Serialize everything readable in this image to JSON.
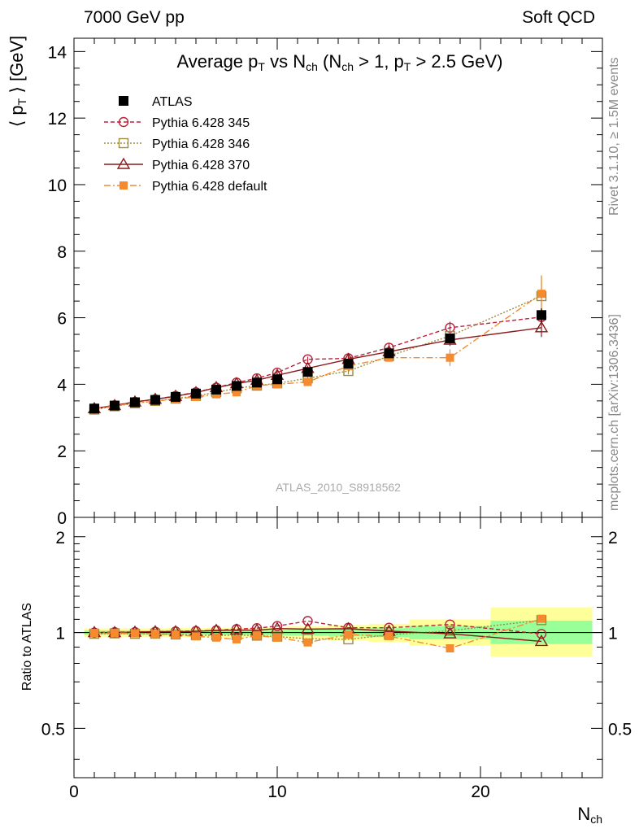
{
  "header": {
    "left": "7000 GeV pp",
    "right": "Soft QCD"
  },
  "side": {
    "rivet": "Rivet 3.1.10, ≥ 1.5M events",
    "mcplots": "mcplots.cern.ch [arXiv:1306.3436]"
  },
  "analysis_id": "ATLAS_2010_S8918562",
  "colors": {
    "atlas": "#000000",
    "p345": "#b8233a",
    "p346": "#a08a3c",
    "p370": "#8b1a1a",
    "pdef": "#f58a2e",
    "band_yellow": "#ffff99",
    "band_green": "#99ff99"
  },
  "chart_data": [
    {
      "type": "line",
      "title_parts": [
        "Average p",
        "T",
        " vs N",
        "ch",
        " (N",
        "ch",
        " > 1, p",
        "T",
        " > 2.5 GeV)"
      ],
      "ylabel_parts": [
        "⟨ p",
        "T",
        " ⟩  [GeV]"
      ],
      "xlim": [
        0,
        26
      ],
      "ylim": [
        0,
        14.4
      ],
      "yticks": [
        0,
        2,
        4,
        6,
        8,
        10,
        12,
        14
      ],
      "x": [
        1,
        2,
        3,
        4,
        5,
        6,
        7,
        8,
        9,
        10,
        11.5,
        13.5,
        15.5,
        18.5,
        23
      ],
      "series": [
        {
          "name": "ATLAS",
          "key": "atlas",
          "values": [
            3.27,
            3.36,
            3.46,
            3.53,
            3.62,
            3.72,
            3.84,
            3.95,
            4.05,
            4.15,
            4.37,
            4.62,
            4.93,
            5.38,
            6.08
          ],
          "errors": [
            0.03,
            0.03,
            0.03,
            0.03,
            0.04,
            0.04,
            0.05,
            0.05,
            0.06,
            0.07,
            0.08,
            0.1,
            0.12,
            0.15,
            0.2
          ]
        },
        {
          "name": "Pythia 6.428 345",
          "key": "p345",
          "values": [
            3.27,
            3.37,
            3.47,
            3.55,
            3.65,
            3.76,
            3.9,
            4.05,
            4.18,
            4.35,
            4.75,
            4.78,
            5.1,
            5.7,
            6.02
          ],
          "errors": [
            0.02,
            0.02,
            0.02,
            0.03,
            0.03,
            0.03,
            0.04,
            0.04,
            0.05,
            0.06,
            0.08,
            0.1,
            0.12,
            0.18,
            0.25
          ]
        },
        {
          "name": "Pythia 6.428 346",
          "key": "p346",
          "values": [
            3.24,
            3.34,
            3.43,
            3.5,
            3.57,
            3.65,
            3.76,
            3.88,
            3.96,
            4.03,
            4.18,
            4.4,
            4.85,
            5.45,
            6.65
          ],
          "errors": [
            0.02,
            0.02,
            0.02,
            0.03,
            0.03,
            0.03,
            0.04,
            0.04,
            0.05,
            0.06,
            0.08,
            0.1,
            0.12,
            0.18,
            0.6
          ]
        },
        {
          "name": "Pythia 6.428 370",
          "key": "p370",
          "values": [
            3.27,
            3.36,
            3.47,
            3.55,
            3.64,
            3.75,
            3.9,
            4.02,
            4.12,
            4.27,
            4.48,
            4.75,
            4.98,
            5.33,
            5.7
          ],
          "errors": [
            0.02,
            0.02,
            0.02,
            0.03,
            0.03,
            0.03,
            0.04,
            0.04,
            0.05,
            0.06,
            0.08,
            0.1,
            0.12,
            0.18,
            0.28
          ]
        },
        {
          "name": "Pythia 6.428 default",
          "key": "pdef",
          "values": [
            3.26,
            3.35,
            3.44,
            3.49,
            3.56,
            3.62,
            3.7,
            3.76,
            3.96,
            4.0,
            4.07,
            4.55,
            4.8,
            4.8,
            6.72
          ],
          "errors": [
            0.02,
            0.02,
            0.02,
            0.03,
            0.03,
            0.03,
            0.04,
            0.04,
            0.05,
            0.06,
            0.08,
            0.1,
            0.12,
            0.25,
            0.55
          ]
        }
      ],
      "legend_placement": "top-left"
    },
    {
      "type": "line",
      "ylabel": "Ratio to ATLAS",
      "xlabel_parts": [
        "N",
        "ch"
      ],
      "xlim": [
        0,
        26
      ],
      "ylim": [
        0.35,
        2.3
      ],
      "y_scale": "log",
      "yticks": [
        0.5,
        1,
        2
      ],
      "yticklabels": [
        "0.5",
        "1",
        "2"
      ],
      "xticks": [
        0,
        10,
        20
      ],
      "bands": [
        {
          "x": [
            0.5,
            1.5
          ],
          "yellow": [
            0.97,
            1.03
          ],
          "green": [
            0.985,
            1.015
          ]
        },
        {
          "x": [
            1.5,
            2.5
          ],
          "yellow": [
            0.97,
            1.03
          ],
          "green": [
            0.985,
            1.015
          ]
        },
        {
          "x": [
            2.5,
            3.5
          ],
          "yellow": [
            0.97,
            1.03
          ],
          "green": [
            0.985,
            1.015
          ]
        },
        {
          "x": [
            3.5,
            4.5
          ],
          "yellow": [
            0.97,
            1.03
          ],
          "green": [
            0.985,
            1.015
          ]
        },
        {
          "x": [
            4.5,
            5.5
          ],
          "yellow": [
            0.968,
            1.032
          ],
          "green": [
            0.984,
            1.016
          ]
        },
        {
          "x": [
            5.5,
            6.5
          ],
          "yellow": [
            0.968,
            1.032
          ],
          "green": [
            0.984,
            1.016
          ]
        },
        {
          "x": [
            6.5,
            7.5
          ],
          "yellow": [
            0.966,
            1.034
          ],
          "green": [
            0.983,
            1.017
          ]
        },
        {
          "x": [
            7.5,
            8.5
          ],
          "yellow": [
            0.966,
            1.034
          ],
          "green": [
            0.983,
            1.017
          ]
        },
        {
          "x": [
            8.5,
            9.5
          ],
          "yellow": [
            0.964,
            1.036
          ],
          "green": [
            0.982,
            1.018
          ]
        },
        {
          "x": [
            9.5,
            10.5
          ],
          "yellow": [
            0.962,
            1.038
          ],
          "green": [
            0.981,
            1.019
          ]
        },
        {
          "x": [
            10.5,
            12.5
          ],
          "yellow": [
            0.955,
            1.045
          ],
          "green": [
            0.978,
            1.022
          ]
        },
        {
          "x": [
            12.5,
            14.5
          ],
          "yellow": [
            0.945,
            1.055
          ],
          "green": [
            0.972,
            1.028
          ]
        },
        {
          "x": [
            14.5,
            16.5
          ],
          "yellow": [
            0.935,
            1.065
          ],
          "green": [
            0.967,
            1.033
          ]
        },
        {
          "x": [
            16.5,
            20.5
          ],
          "yellow": [
            0.91,
            1.1
          ],
          "green": [
            0.952,
            1.048
          ]
        },
        {
          "x": [
            20.5,
            25.5
          ],
          "yellow": [
            0.84,
            1.2
          ],
          "green": [
            0.92,
            1.09
          ]
        }
      ],
      "series": [
        {
          "name": "Pythia 6.428 345",
          "key": "p345",
          "values": [
            1.0,
            1.003,
            1.003,
            1.006,
            1.008,
            1.011,
            1.016,
            1.025,
            1.032,
            1.048,
            1.087,
            1.035,
            1.035,
            1.06,
            0.99
          ]
        },
        {
          "name": "Pythia 6.428 346",
          "key": "p346",
          "values": [
            0.991,
            0.994,
            0.991,
            0.992,
            0.986,
            0.981,
            0.979,
            0.982,
            0.978,
            0.971,
            0.956,
            0.952,
            0.984,
            1.013,
            1.094
          ]
        },
        {
          "name": "Pythia 6.428 370",
          "key": "p370",
          "values": [
            1.0,
            1.0,
            1.003,
            1.006,
            1.006,
            1.008,
            1.016,
            1.018,
            1.017,
            1.029,
            1.025,
            1.028,
            1.01,
            0.991,
            0.938
          ]
        },
        {
          "name": "Pythia 6.428 default",
          "key": "pdef",
          "values": [
            0.997,
            0.997,
            0.994,
            0.989,
            0.983,
            0.973,
            0.964,
            0.952,
            0.978,
            0.964,
            0.931,
            0.985,
            0.974,
            0.892,
            1.105
          ]
        }
      ]
    }
  ]
}
